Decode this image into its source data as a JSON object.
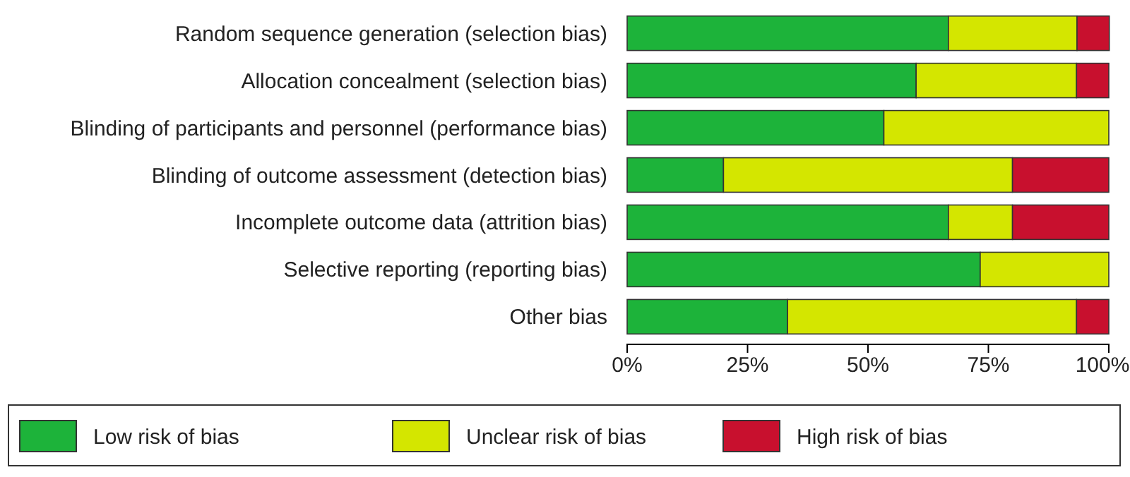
{
  "chart_data": {
    "type": "bar",
    "orientation": "horizontal",
    "stacked": true,
    "categories": [
      "Random sequence generation (selection bias)",
      "Allocation concealment (selection bias)",
      "Blinding of participants and personnel (performance bias)",
      "Blinding of outcome assessment (detection bias)",
      "Incomplete outcome data (attrition bias)",
      "Selective reporting (reporting bias)",
      "Other bias"
    ],
    "series": [
      {
        "name": "Low risk of bias",
        "color": "#1db33a",
        "values": [
          66.7,
          60,
          53.3,
          20,
          66.7,
          73.3,
          33.3
        ]
      },
      {
        "name": "Unclear risk of bias",
        "color": "#d4e600",
        "values": [
          26.7,
          33.3,
          46.7,
          60,
          13.3,
          26.7,
          60
        ]
      },
      {
        "name": "High risk of bias",
        "color": "#c8102e",
        "values": [
          6.7,
          6.7,
          0,
          20,
          20,
          0,
          6.7
        ]
      }
    ],
    "xlim": [
      0,
      100
    ],
    "xticks": [
      {
        "value": 0,
        "label": "0%"
      },
      {
        "value": 25,
        "label": "25%"
      },
      {
        "value": 50,
        "label": "50%"
      },
      {
        "value": 75,
        "label": "75%"
      },
      {
        "value": 100,
        "label": "100%"
      }
    ],
    "legend": "bottom"
  }
}
